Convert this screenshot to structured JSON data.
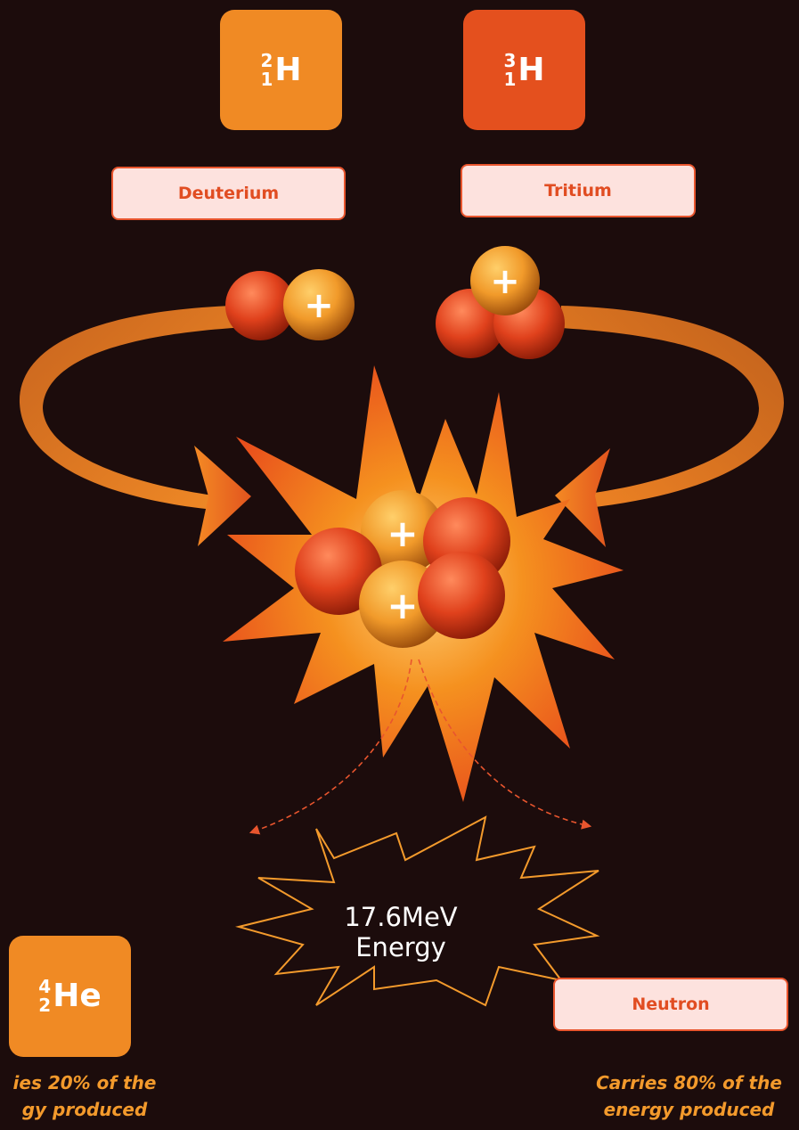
{
  "isotopes": {
    "deuterium": {
      "symbol": "H",
      "mass_number": "2",
      "atomic_number": "1",
      "name": "Deuterium"
    },
    "tritium": {
      "symbol": "H",
      "mass_number": "3",
      "atomic_number": "1",
      "name": "Tritium"
    },
    "helium": {
      "symbol": "He",
      "mass_number": "4",
      "atomic_number": "2"
    }
  },
  "neutron": {
    "name": "Neutron"
  },
  "energy": {
    "value": "17.6MeV",
    "label": "Energy"
  },
  "captions": {
    "helium_line1": "ies 20% of the",
    "helium_line2": "gy produced",
    "neutron_line1": "Carries 80% of the",
    "neutron_line2": "energy produced"
  },
  "proton_symbol": "+",
  "colors": {
    "background": "#1c0c0c",
    "deuterium_card": "#f08a24",
    "tritium_card": "#e4501e",
    "label_fill": "#fde2de",
    "label_border": "#e8552e",
    "caption": "#f39a2c"
  }
}
